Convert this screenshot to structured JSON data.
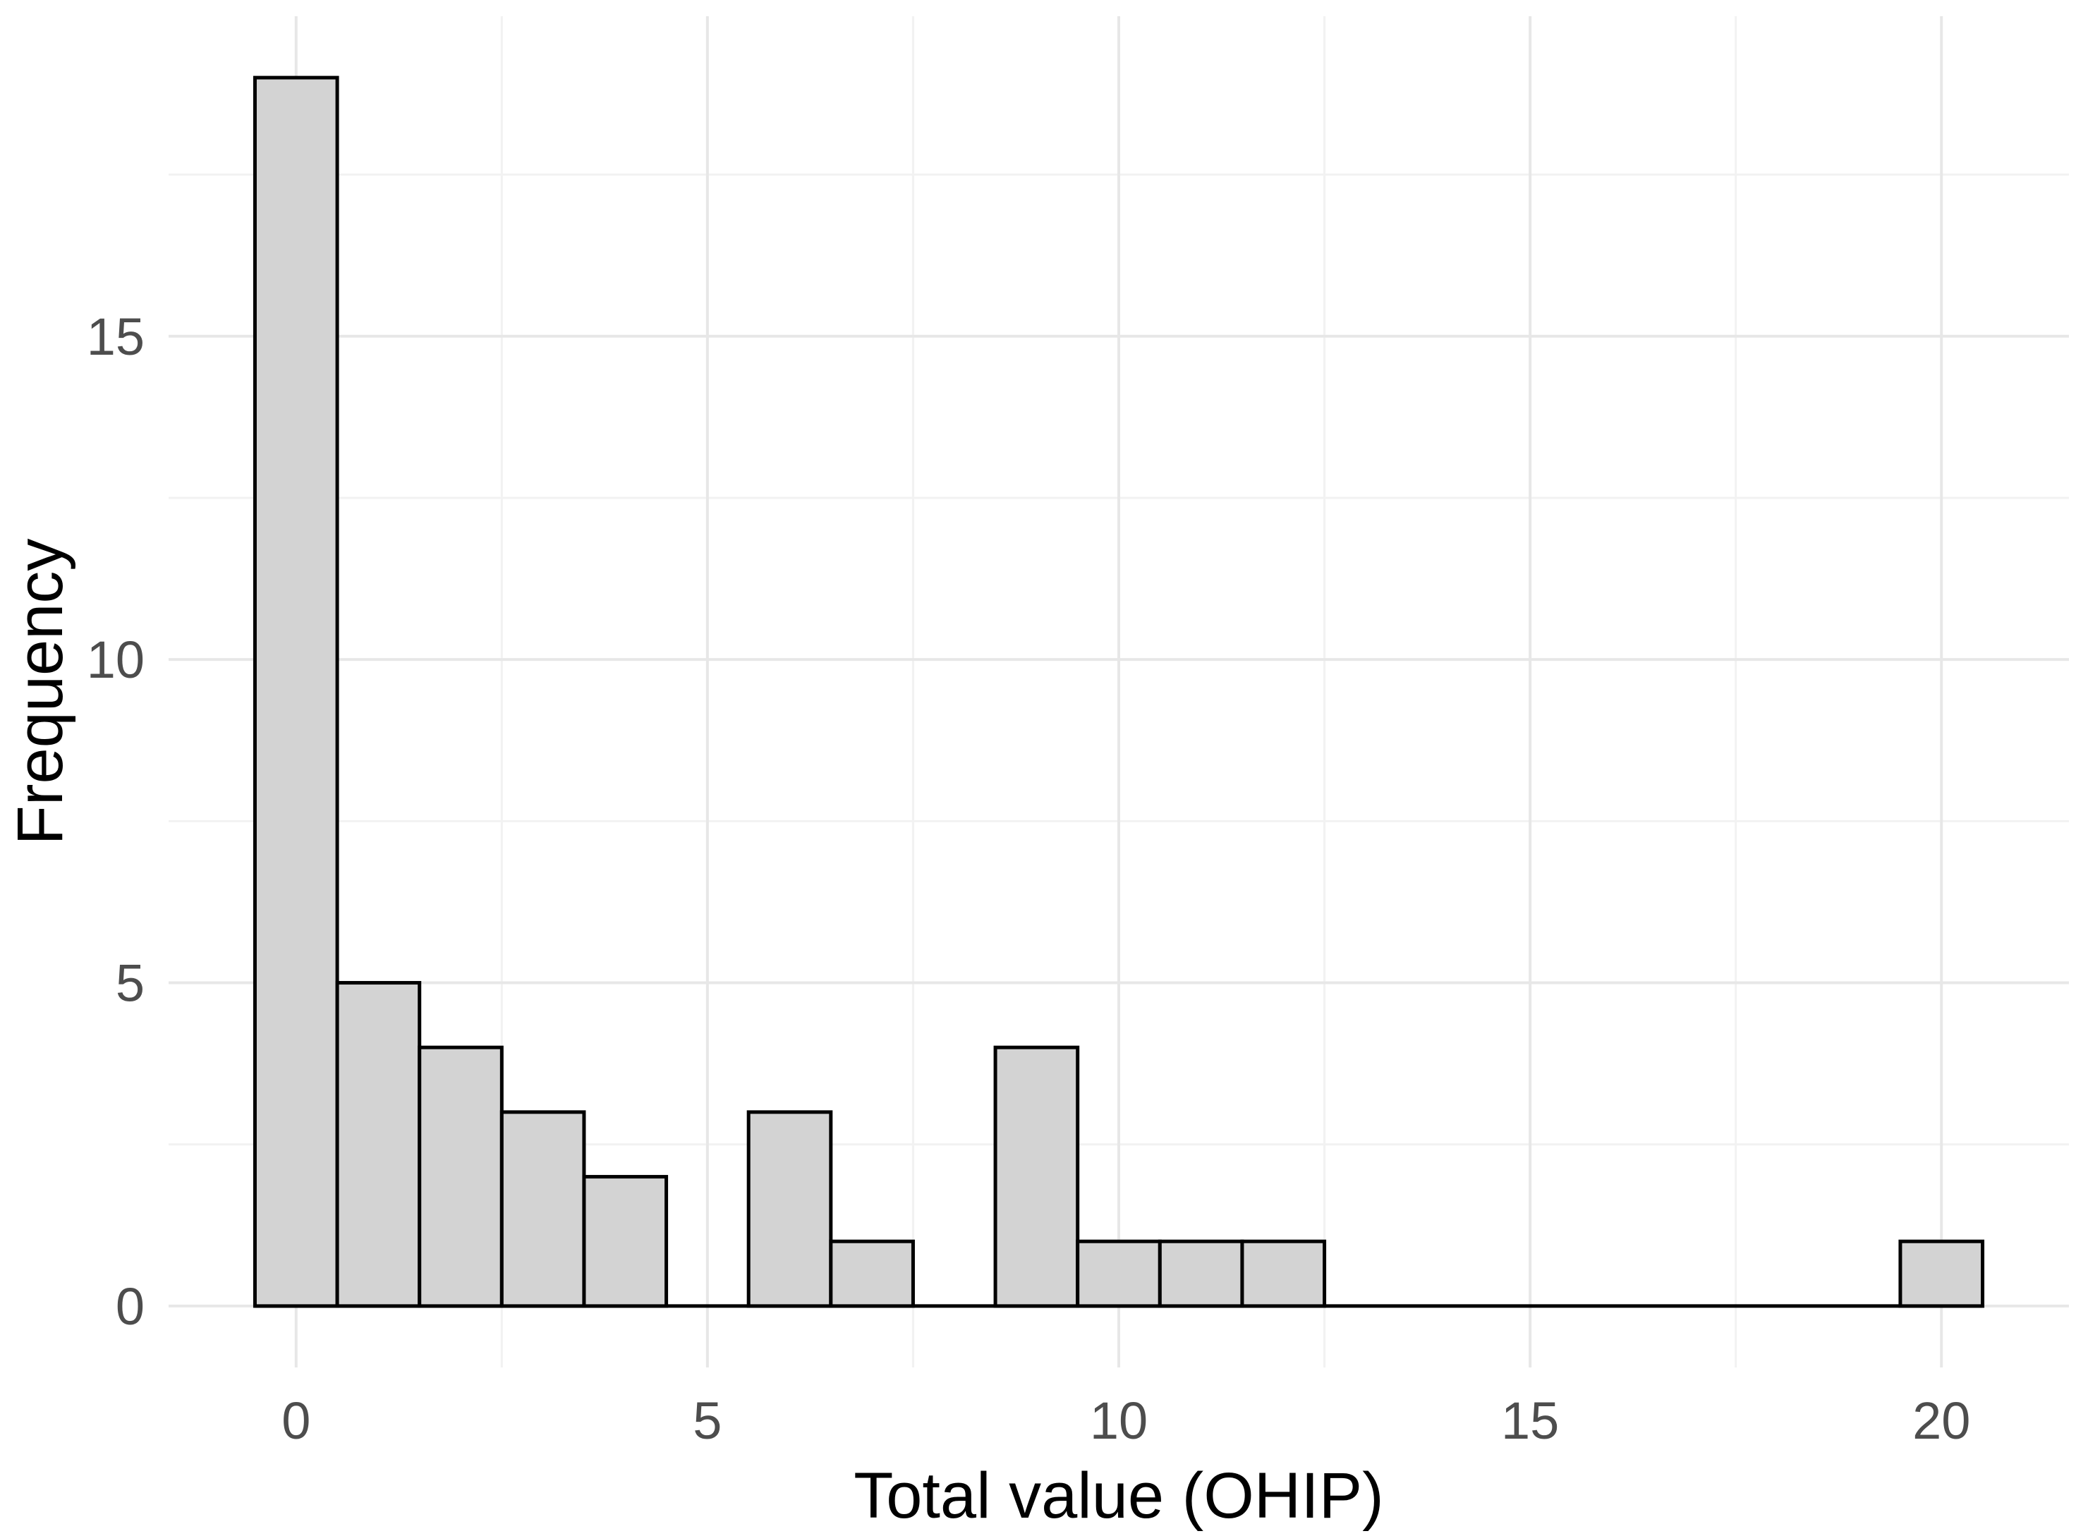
{
  "chart_data": {
    "type": "bar",
    "subtype": "histogram",
    "title": "",
    "xlabel": "Total value (OHIP)",
    "ylabel": "Frequency",
    "bin_width": 1,
    "bin_centers": [
      0,
      1,
      2,
      3,
      4,
      5,
      6,
      7,
      8,
      9,
      10,
      11,
      12,
      13,
      14,
      15,
      16,
      17,
      18,
      19,
      20
    ],
    "counts": [
      19,
      5,
      4,
      3,
      2,
      0,
      3,
      1,
      0,
      4,
      1,
      1,
      1,
      0,
      0,
      0,
      0,
      0,
      0,
      0,
      1
    ],
    "x_ticks": [
      0,
      5,
      10,
      15,
      20
    ],
    "x_tick_labels": [
      "0",
      "5",
      "10",
      "15",
      "20"
    ],
    "y_ticks": [
      0,
      5,
      10,
      15
    ],
    "y_tick_labels": [
      "0",
      "5",
      "10",
      "15"
    ],
    "x_minor_ticks": [
      2.5,
      7.5,
      12.5,
      17.5
    ],
    "y_minor_ticks": [
      2.5,
      7.5,
      12.5,
      17.5
    ],
    "xlim": [
      -1.55,
      21.55
    ],
    "ylim": [
      -0.95,
      19.95
    ],
    "data_extent_x": [
      -0.5,
      20.5
    ],
    "grid": "on",
    "legend": "none",
    "colors": {
      "background": "#ffffff",
      "bar_fill": "#d3d3d3",
      "bar_stroke": "#000000",
      "baseline": "#000000",
      "grid_major": "#e7e7e7",
      "grid_minor": "#f2f2f2",
      "tick_label": "#4d4d4d",
      "axis_title": "#000000"
    }
  }
}
